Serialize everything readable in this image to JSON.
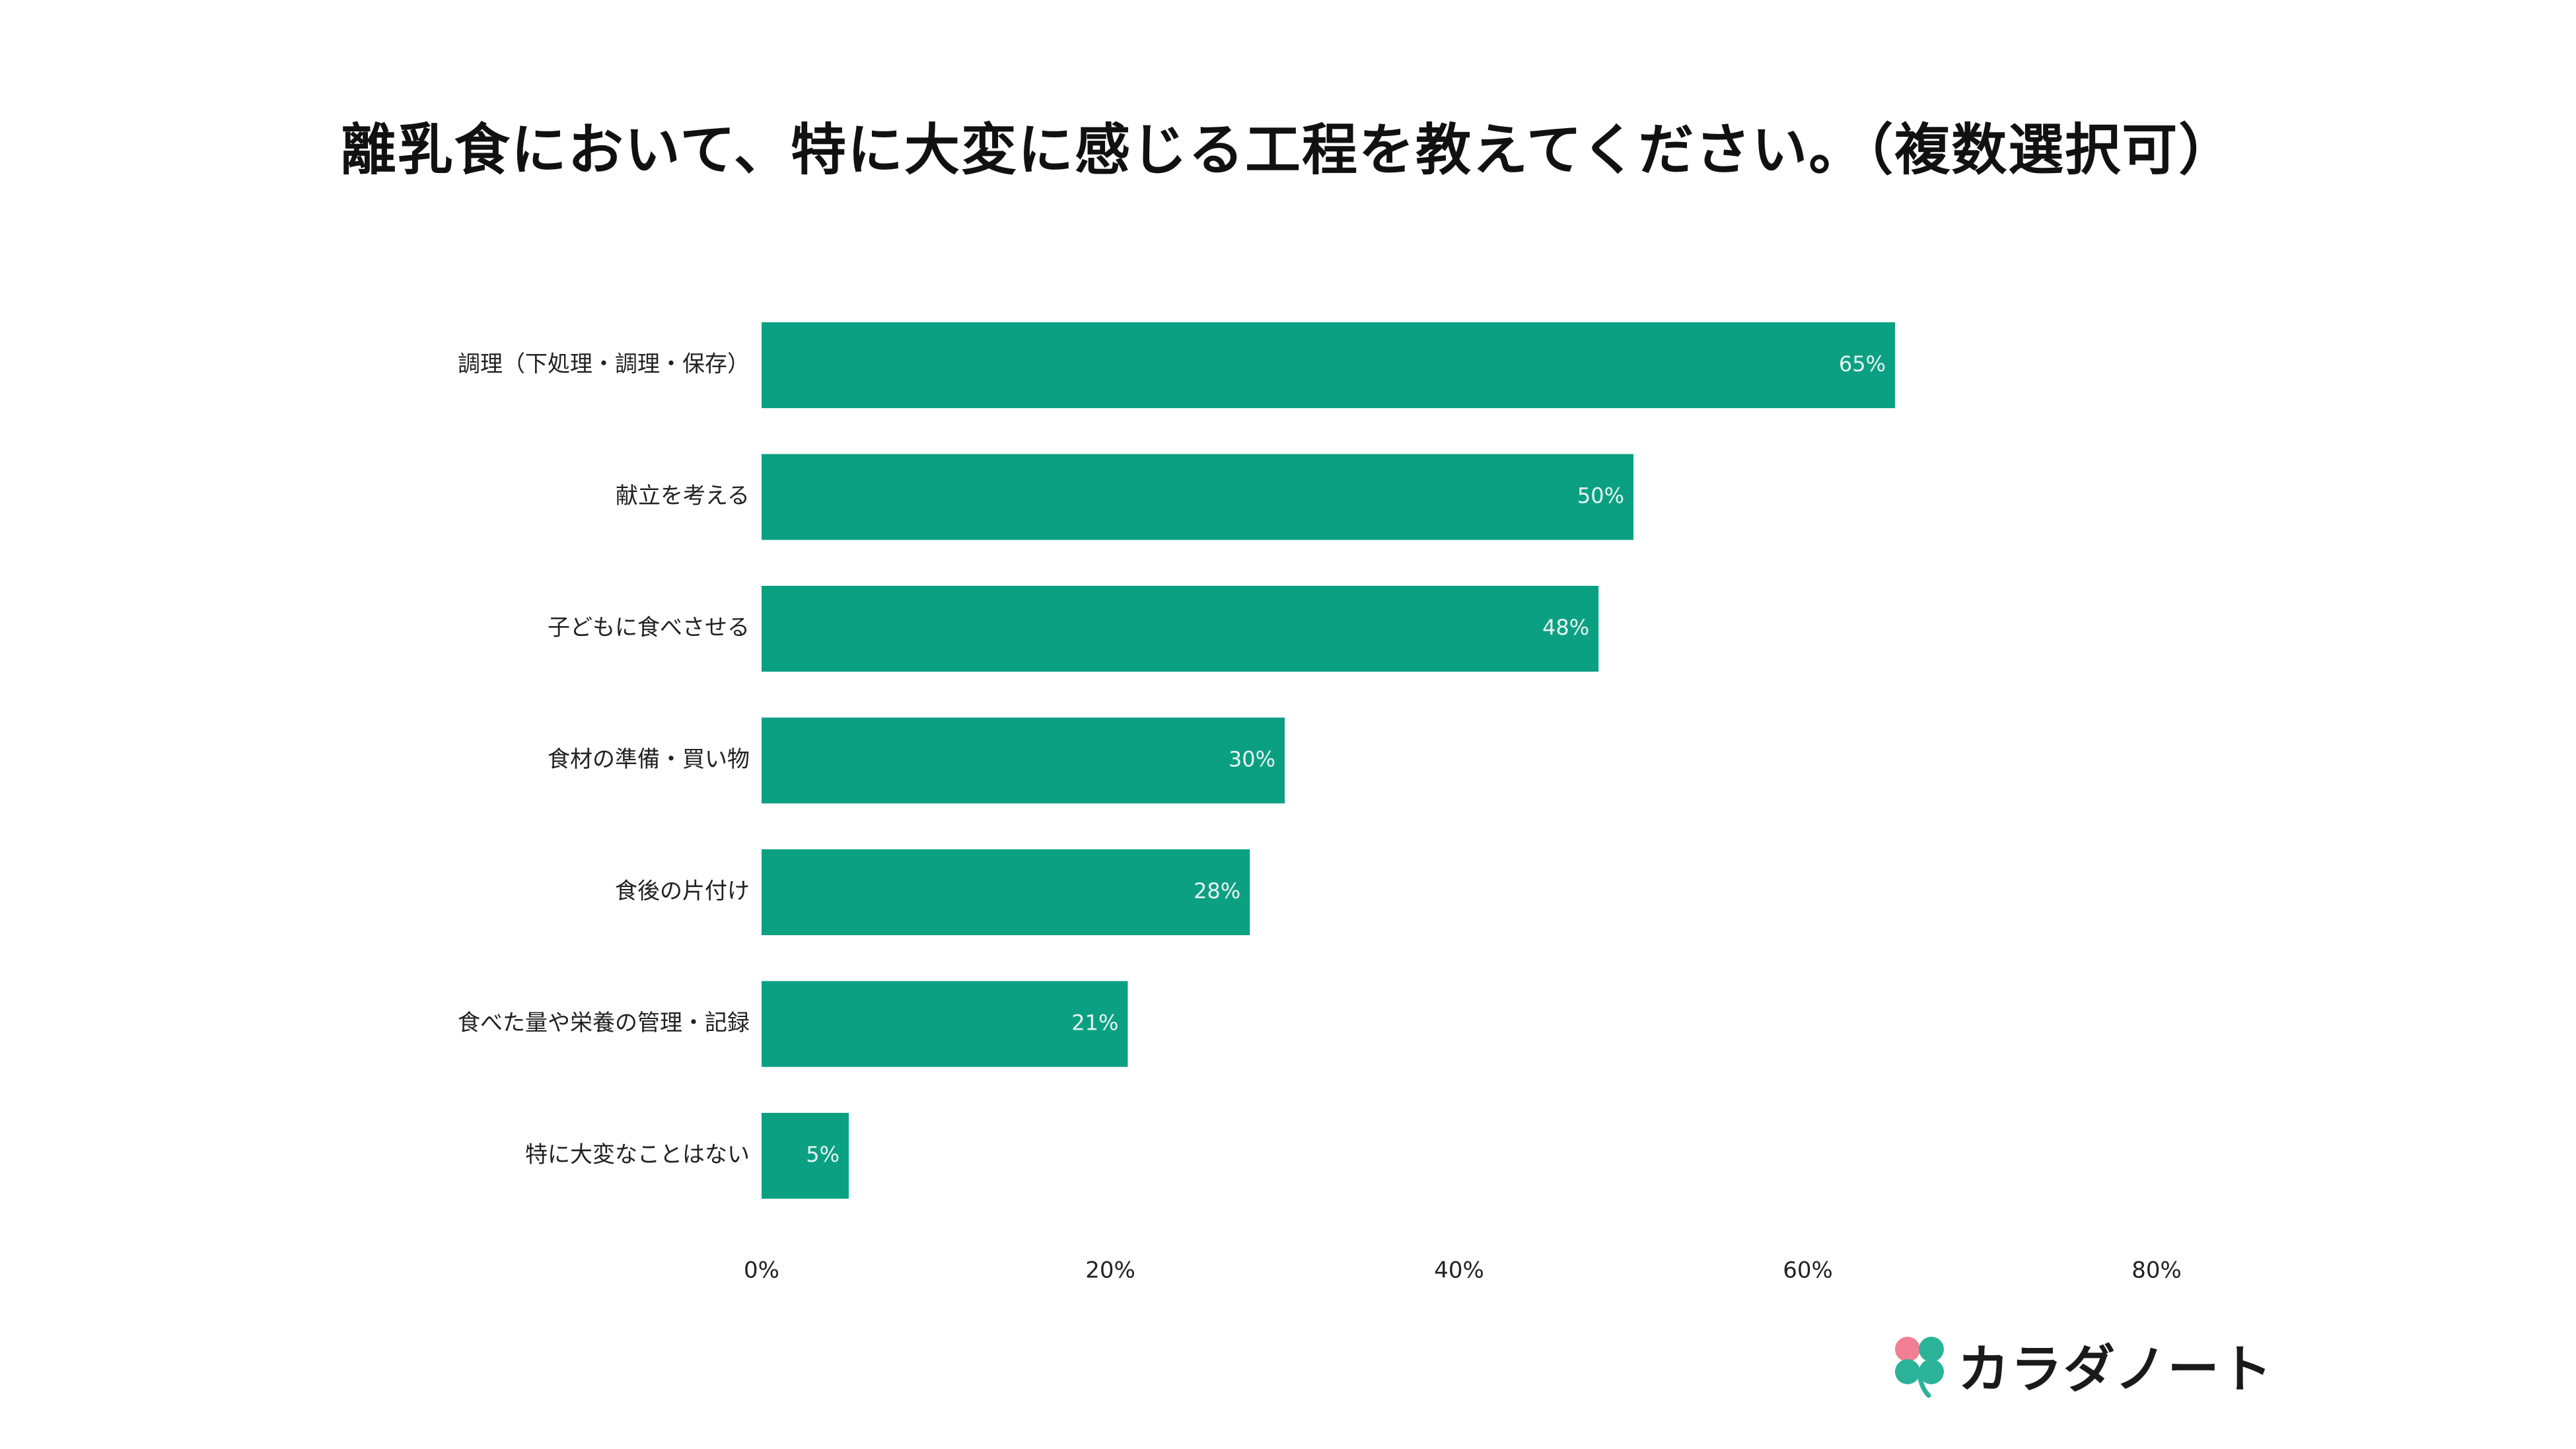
{
  "chart_data": {
    "type": "bar",
    "orientation": "horizontal",
    "title": "離乳食において、特に大変に感じる工程を教えてください。（複数選択可）",
    "categories": [
      "調理（下処理・調理・保存）",
      "献立を考える",
      "子どもに食べさせる",
      "食材の準備・買い物",
      "食後の片付け",
      "食べた量や栄養の管理・記録",
      "特に大変なことはない"
    ],
    "values": [
      65,
      50,
      48,
      30,
      28,
      21,
      5
    ],
    "value_labels": [
      "65%",
      "50%",
      "48%",
      "30%",
      "28%",
      "21%",
      "5%"
    ],
    "xlim": [
      0,
      80
    ],
    "x_ticks": [
      0,
      20,
      40,
      60,
      80
    ],
    "x_tick_labels": [
      "0%",
      "20%",
      "40%",
      "60%",
      "80%"
    ],
    "bar_color": "#0ca083",
    "grid": false,
    "legend": "none"
  },
  "logo": {
    "text": "カラダノート",
    "icon": "clover-icon",
    "colors": [
      "#f07f93",
      "#2bb39a"
    ]
  }
}
